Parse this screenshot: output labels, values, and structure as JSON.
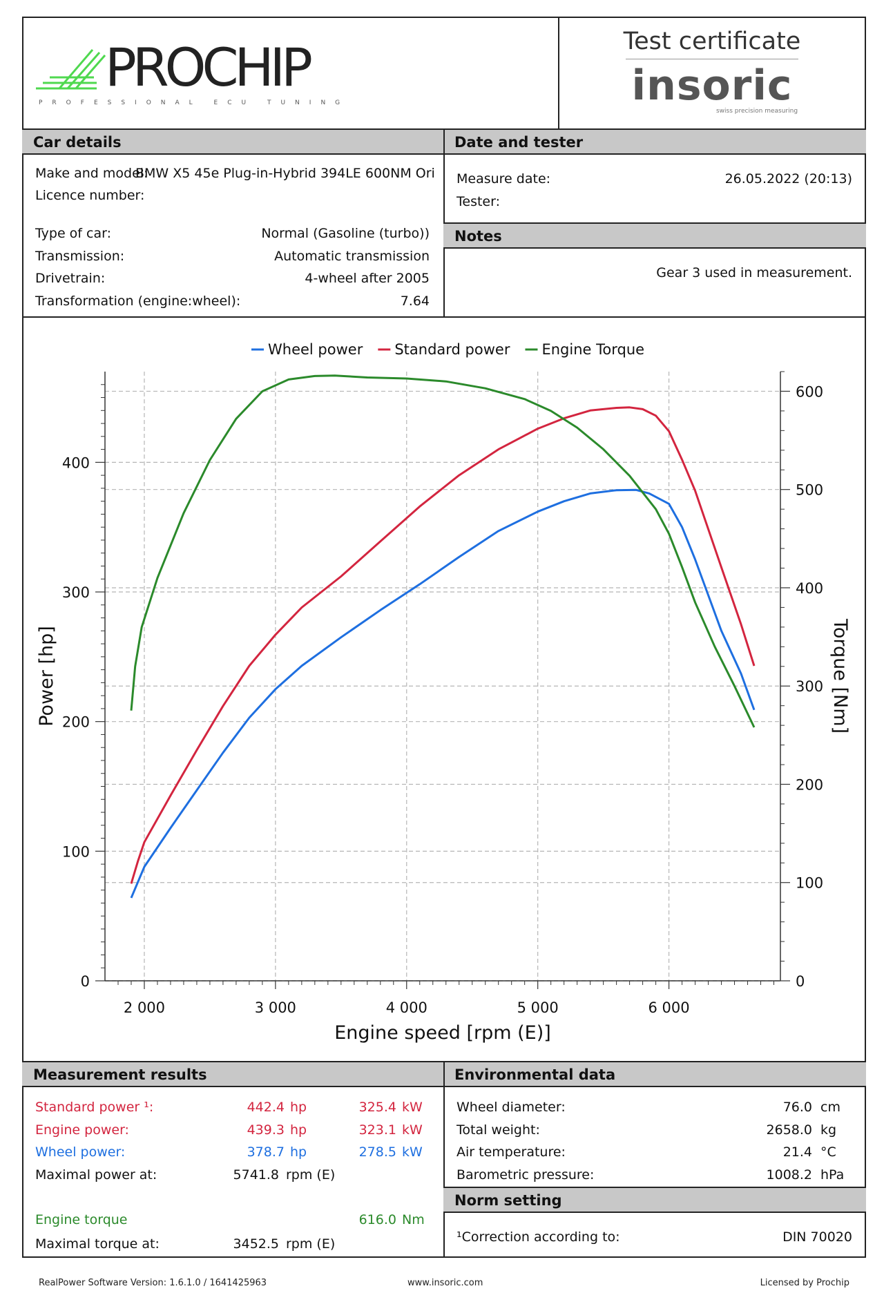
{
  "header": {
    "logo_text": "PROCHIP",
    "logo_tagline": "PROFESSIONAL ECU TUNING",
    "certificate_title": "Test certificate",
    "brand": "insoric",
    "brand_tagline": "swiss precision measuring"
  },
  "car_details": {
    "title": "Car details",
    "make_model_label": "Make and model:",
    "make_model_value": "BMW X5 45e Plug-in-Hybrid 394LE 600NM Ori",
    "licence_label": "Licence number:",
    "type_label": "Type of car:",
    "type_value": "Normal (Gasoline (turbo))",
    "transmission_label": "Transmission:",
    "transmission_value": "Automatic transmission",
    "drivetrain_label": "Drivetrain:",
    "drivetrain_value": "4-wheel after 2005",
    "transformation_label": "Transformation (engine:wheel):",
    "transformation_value": "7.64"
  },
  "date_tester": {
    "title": "Date and tester",
    "measure_date_label": "Measure date:",
    "measure_date_value": "26.05.2022 (20:13)",
    "tester_label": "Tester:"
  },
  "notes": {
    "title": "Notes",
    "text": "Gear 3 used in measurement."
  },
  "colors": {
    "wheel": "#1e6fe0",
    "standard": "#d3253f",
    "torque": "#2b8a2b"
  },
  "chart_data": {
    "type": "line",
    "xlabel": "Engine speed [rpm (E)]",
    "ylabel": "Power [hp]",
    "y2label": "Torque [Nm]",
    "xlim": [
      1700,
      6850
    ],
    "ylim": [
      0,
      470
    ],
    "y2lim": [
      0,
      620
    ],
    "xticks": [
      2000,
      3000,
      4000,
      5000,
      6000
    ],
    "xtick_labels": [
      "2 000",
      "3 000",
      "4 000",
      "5 000",
      "6 000"
    ],
    "yticks": [
      0,
      100,
      200,
      300,
      400
    ],
    "y2ticks": [
      0,
      100,
      200,
      300,
      400,
      500,
      600
    ],
    "grid": true,
    "legend_position": "top",
    "series": [
      {
        "name": "Wheel power",
        "axis": "left",
        "color": "#1e6fe0",
        "x": [
          1900,
          1950,
          2000,
          2200,
          2400,
          2600,
          2800,
          3000,
          3200,
          3500,
          3800,
          4100,
          4400,
          4700,
          5000,
          5200,
          5400,
          5600,
          5750,
          5850,
          6000,
          6100,
          6200,
          6400,
          6550,
          6650
        ],
        "y": [
          64,
          76,
          88,
          118,
          147,
          176,
          203,
          225,
          243,
          265,
          286,
          306,
          327,
          347,
          362,
          370,
          376,
          378.5,
          378.7,
          376,
          368,
          350,
          325,
          270,
          237,
          209
        ]
      },
      {
        "name": "Standard power",
        "axis": "left",
        "color": "#d3253f",
        "x": [
          1900,
          1950,
          2000,
          2200,
          2400,
          2600,
          2800,
          3000,
          3200,
          3500,
          3800,
          4100,
          4400,
          4700,
          5000,
          5200,
          5400,
          5600,
          5700,
          5800,
          5900,
          6000,
          6100,
          6200,
          6400,
          6550,
          6650
        ],
        "y": [
          75,
          92,
          107,
          143,
          178,
          212,
          243,
          267,
          288,
          312,
          339,
          366,
          390,
          410,
          426,
          434,
          440,
          442,
          442.4,
          441,
          436,
          424,
          402,
          378,
          319,
          275,
          243
        ]
      },
      {
        "name": "Engine Torque",
        "axis": "right",
        "color": "#2b8a2b",
        "x": [
          1900,
          1930,
          1980,
          2100,
          2300,
          2500,
          2700,
          2900,
          3100,
          3300,
          3452,
          3700,
          4000,
          4300,
          4600,
          4900,
          5100,
          5300,
          5500,
          5700,
          5900,
          6000,
          6100,
          6200,
          6350,
          6500,
          6650
        ],
        "y": [
          275,
          320,
          360,
          410,
          476,
          530,
          572,
          600,
          612,
          615.5,
          616,
          614,
          613,
          610,
          603,
          592,
          580,
          563,
          541,
          514,
          480,
          455,
          421,
          385,
          340,
          300,
          258
        ]
      }
    ]
  },
  "measurement": {
    "title": "Measurement results",
    "standard_label": "Standard power ¹:",
    "standard_hp": "442.4",
    "standard_kw": "325.4",
    "engine_label": "Engine power:",
    "engine_hp": "439.3",
    "engine_kw": "323.1",
    "wheel_label": "Wheel power:",
    "wheel_hp": "378.7",
    "wheel_kw": "278.5",
    "unit_hp": "hp",
    "unit_kw": "kW",
    "max_power_label": "Maximal power at:",
    "max_power_value": "5741.8",
    "rpm_unit": "rpm (E)",
    "torque_label": "Engine torque",
    "torque_value": "616.0",
    "torque_unit": "Nm",
    "max_torque_label": "Maximal torque at:",
    "max_torque_value": "3452.5"
  },
  "environment": {
    "title": "Environmental data",
    "wheel_diameter_label": "Wheel diameter:",
    "wheel_diameter_value": "76.0",
    "wheel_diameter_unit": "cm",
    "weight_label": "Total weight:",
    "weight_value": "2658.0",
    "weight_unit": "kg",
    "air_temp_label": "Air temperature:",
    "air_temp_value": "21.4",
    "air_temp_unit": "°C",
    "pressure_label": "Barometric pressure:",
    "pressure_value": "1008.2",
    "pressure_unit": "hPa"
  },
  "norm": {
    "title": "Norm setting",
    "correction_label": "¹Correction according to:",
    "correction_value": "DIN 70020"
  },
  "footer": {
    "software": "RealPower Software Version: 1.6.1.0 / 1641425963",
    "website": "www.insoric.com",
    "license": "Licensed by Prochip"
  }
}
